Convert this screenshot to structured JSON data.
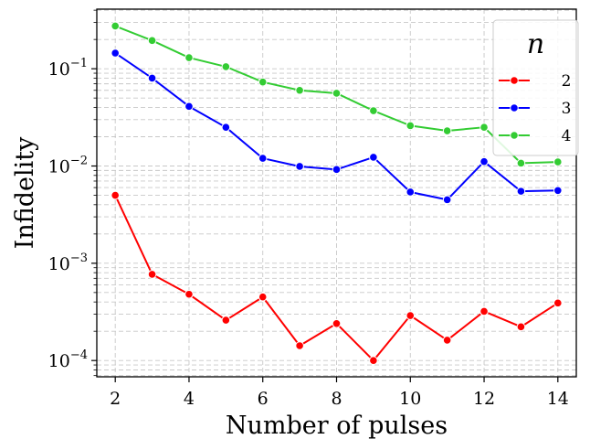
{
  "chart_data": {
    "type": "line",
    "xlabel": "Number of pulses",
    "ylabel": "Infidelity",
    "yscale": "log",
    "xlim": [
      1.5,
      14.5
    ],
    "ylim": [
      6.8e-05,
      0.41
    ],
    "x_ticks": [
      "2",
      "4",
      "6",
      "8",
      "10",
      "12",
      "14"
    ],
    "y_ticks": [
      {
        "base": "10",
        "exp": "−4",
        "value": 0.0001
      },
      {
        "base": "10",
        "exp": "−3",
        "value": 0.001
      },
      {
        "base": "10",
        "exp": "−2",
        "value": 0.01
      },
      {
        "base": "10",
        "exp": "−1",
        "value": 0.1
      }
    ],
    "grid": true,
    "legend": {
      "title": "n",
      "placement": "top-right"
    },
    "x": [
      2,
      3,
      4,
      5,
      6,
      7,
      8,
      9,
      10,
      11,
      12,
      13,
      14
    ],
    "series": [
      {
        "name": "2",
        "color": "#ff0000",
        "values": [
          0.005,
          0.00077,
          0.00048,
          0.00026,
          0.00045,
          0.000142,
          0.00024,
          0.0001,
          0.00029,
          0.000162,
          0.00032,
          0.000222,
          0.00039
        ]
      },
      {
        "name": "3",
        "color": "#0000ff",
        "values": [
          0.145,
          0.08,
          0.041,
          0.025,
          0.012,
          0.0099,
          0.0092,
          0.0123,
          0.0054,
          0.0045,
          0.0111,
          0.0055,
          0.0056
        ]
      },
      {
        "name": "4",
        "color": "#33cc33",
        "values": [
          0.275,
          0.195,
          0.13,
          0.105,
          0.073,
          0.06,
          0.056,
          0.037,
          0.026,
          0.023,
          0.025,
          0.0107,
          0.011
        ]
      }
    ]
  }
}
